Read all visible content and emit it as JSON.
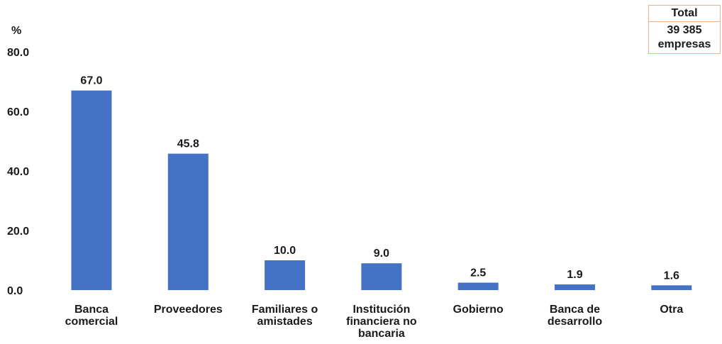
{
  "chart_data": {
    "type": "bar",
    "categories": [
      [
        "Banca",
        "comercial"
      ],
      [
        "Proveedores"
      ],
      [
        "Familiares o",
        "amistades"
      ],
      [
        "Institución",
        "financiera no",
        "bancaria"
      ],
      [
        "Gobierno"
      ],
      [
        "Banca de",
        "desarrollo"
      ],
      [
        "Otra"
      ]
    ],
    "values": [
      67.0,
      45.8,
      10.0,
      9.0,
      2.5,
      1.9,
      1.6
    ],
    "data_labels": [
      "67.0",
      "45.8",
      "10.0",
      "9.0",
      "2.5",
      "1.9",
      "1.6"
    ],
    "ylabel": "%",
    "ylim": [
      0,
      80
    ],
    "yticks": [
      "0.0",
      "20.0",
      "40.0",
      "60.0",
      "80.0"
    ],
    "ytick_values": [
      0,
      20,
      40,
      60,
      80
    ],
    "grid": false,
    "bar_color": "#4472c4"
  },
  "total_box": {
    "header": "Total",
    "value_line1": "39 385",
    "value_line2": "empresas",
    "border_color": "#f4b183"
  }
}
